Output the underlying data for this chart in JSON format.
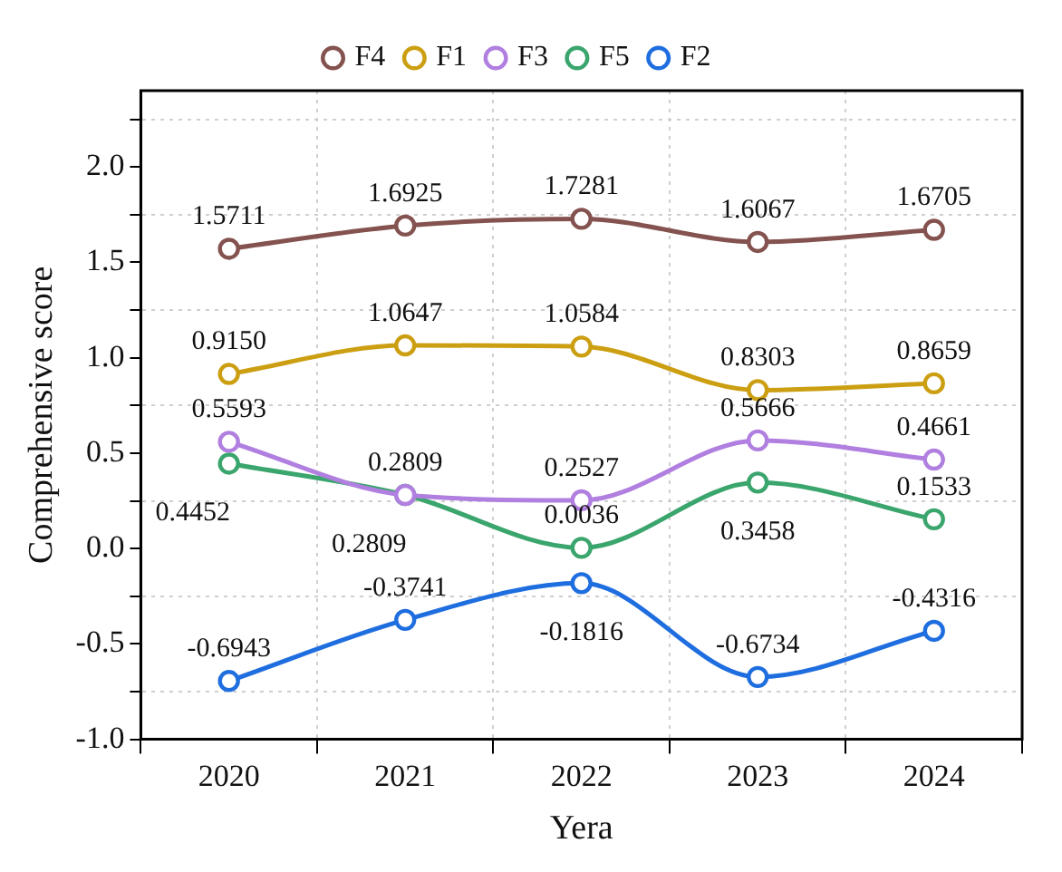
{
  "chart_data": {
    "type": "line",
    "xlabel": "Yera",
    "ylabel": "Comprehensive score",
    "categories": [
      "2020",
      "2021",
      "2022",
      "2023",
      "2024"
    ],
    "series": [
      {
        "name": "F4",
        "color": "#84524f",
        "values": [
          1.5711,
          1.6925,
          1.7281,
          1.6067,
          1.6705
        ],
        "value_labels": [
          "1.5711",
          "1.6925",
          "1.7281",
          "1.6067",
          "1.6705"
        ]
      },
      {
        "name": "F1",
        "color": "#cc9f12",
        "values": [
          0.915,
          1.0647,
          1.0584,
          0.8303,
          0.8659
        ],
        "value_labels": [
          "0.9150",
          "1.0647",
          "1.0584",
          "0.8303",
          "0.8659"
        ]
      },
      {
        "name": "F3",
        "color": "#b07fe0",
        "values": [
          0.5593,
          0.2809,
          0.2527,
          0.5666,
          0.4661
        ],
        "value_labels": [
          "0.5593",
          "0.2809",
          "0.2527",
          "0.5666",
          "0.4661"
        ]
      },
      {
        "name": "F5",
        "color": "#3aa56c",
        "values": [
          0.4452,
          0.2809,
          0.0036,
          0.3458,
          0.1533
        ],
        "value_labels": [
          "0.4452",
          "0.2809",
          "0.0036",
          "0.3458",
          "0.1533"
        ]
      },
      {
        "name": "F2",
        "color": "#1f6ee0",
        "values": [
          -0.6943,
          -0.3741,
          -0.1816,
          -0.6734,
          -0.4316
        ],
        "value_labels": [
          "-0.6943",
          "-0.3741",
          "-0.1816",
          "-0.6734",
          "-0.4316"
        ]
      }
    ],
    "ylim": [
      -1,
      2.4
    ],
    "yticks": [
      {
        "value": -1,
        "label": "-1.0"
      },
      {
        "value": -0.75,
        "label": null
      },
      -0.5,
      {
        "value": -0.25,
        "label": null
      },
      {
        "value": 0,
        "label": "0.0"
      },
      {
        "value": 0.25,
        "label": null
      },
      0.5,
      {
        "value": 0.75,
        "label": null
      },
      {
        "value": 1,
        "label": "1.0"
      },
      {
        "value": 1.25,
        "label": null
      },
      1.5,
      {
        "value": 1.75,
        "label": null
      },
      {
        "value": 2,
        "label": "2.0"
      },
      {
        "value": 2.25,
        "label": null
      }
    ],
    "grid": true,
    "legend": "top",
    "marker": "circle",
    "line_style": "solid"
  }
}
